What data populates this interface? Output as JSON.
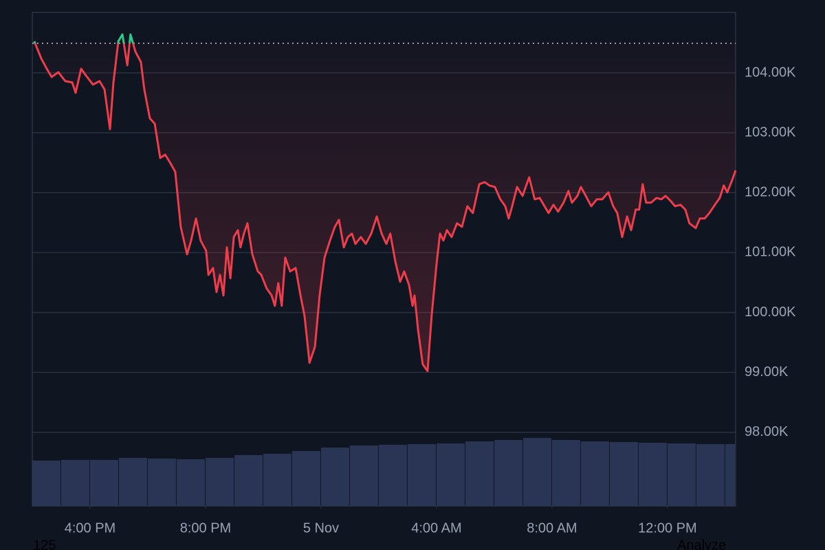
{
  "chart_data": {
    "type": "line",
    "x": [
      14.07,
      14.31,
      14.5,
      14.67,
      14.9,
      15.14,
      15.38,
      15.5,
      15.69,
      15.86,
      16.1,
      16.33,
      16.5,
      16.69,
      16.81,
      16.98,
      17.12,
      17.29,
      17.4,
      17.57,
      17.76,
      17.88,
      18.07,
      18.24,
      18.43,
      18.6,
      18.79,
      18.95,
      19.14,
      19.36,
      19.5,
      19.67,
      19.83,
      20.02,
      20.1,
      20.26,
      20.38,
      20.5,
      20.62,
      20.74,
      20.86,
      20.98,
      21.12,
      21.21,
      21.33,
      21.45,
      21.62,
      21.81,
      21.93,
      22.12,
      22.29,
      22.4,
      22.52,
      22.64,
      22.76,
      22.93,
      23.12,
      23.29,
      23.43,
      23.6,
      23.79,
      23.95,
      24.12,
      24.31,
      24.48,
      24.62,
      24.79,
      24.93,
      25.07,
      25.19,
      25.38,
      25.55,
      25.74,
      25.93,
      26.1,
      26.26,
      26.4,
      26.57,
      26.74,
      26.88,
      27.05,
      27.17,
      27.24,
      27.36,
      27.52,
      27.69,
      27.83,
      28,
      28.12,
      28.24,
      28.36,
      28.52,
      28.71,
      28.88,
      29.07,
      29.26,
      29.48,
      29.67,
      29.83,
      30.02,
      30.21,
      30.38,
      30.5,
      30.62,
      30.79,
      30.98,
      31.21,
      31.4,
      31.57,
      31.74,
      31.88,
      32.05,
      32.21,
      32.4,
      32.57,
      32.69,
      32.88,
      33,
      33.17,
      33.36,
      33.55,
      33.74,
      33.95,
      34.12,
      34.26,
      34.43,
      34.6,
      34.74,
      34.9,
      35.02,
      35.14,
      35.26,
      35.43,
      35.62,
      35.79,
      35.93,
      36.1,
      36.26,
      36.45,
      36.62,
      36.76,
      36.98,
      37.12,
      37.29,
      37.45,
      37.64,
      37.81,
      37.95,
      38.07,
      38.24,
      38.36
    ],
    "values": [
      104527,
      104240,
      104069,
      103931,
      104011,
      103862,
      103840,
      103667,
      104069,
      103954,
      103805,
      103862,
      103725,
      103060,
      103840,
      104527,
      104642,
      104126,
      104642,
      104355,
      104183,
      103725,
      103243,
      103151,
      102578,
      102635,
      102486,
      102349,
      101431,
      100972,
      101202,
      101569,
      101202,
      101030,
      100628,
      100743,
      100342,
      100628,
      100284,
      101087,
      100571,
      101259,
      101374,
      101087,
      101317,
      101489,
      100972,
      100686,
      100628,
      100399,
      100284,
      100112,
      100491,
      100112,
      100915,
      100686,
      100743,
      100284,
      99940,
      99161,
      99427,
      100284,
      100915,
      101202,
      101431,
      101546,
      101087,
      101259,
      101317,
      101145,
      101259,
      101145,
      101317,
      101603,
      101317,
      101145,
      101317,
      100858,
      100514,
      100686,
      100456,
      100112,
      100284,
      99711,
      99138,
      99023,
      99940,
      100800,
      101317,
      101202,
      101374,
      101259,
      101489,
      101431,
      101775,
      101661,
      102142,
      102177,
      102120,
      102096,
      101890,
      101775,
      101569,
      101775,
      102096,
      101947,
      102257,
      101890,
      101913,
      101775,
      101661,
      101798,
      101684,
      101833,
      102028,
      101833,
      101947,
      102096,
      101947,
      101775,
      101890,
      101890,
      102005,
      101775,
      101661,
      101259,
      101603,
      101374,
      101718,
      101718,
      102142,
      101833,
      101833,
      101913,
      101890,
      101947,
      101867,
      101775,
      101798,
      101718,
      101489,
      101409,
      101569,
      101569,
      101661,
      101798,
      101913,
      102120,
      102005,
      102211,
      102372
    ],
    "baseline": 104493,
    "colors": {
      "above": "#2ec98b",
      "below": "#ee3e4b",
      "volume": "#2a3556"
    },
    "volume": {
      "x": [
        14,
        15,
        16,
        17,
        18,
        19,
        20,
        21,
        22,
        23,
        24,
        25,
        26,
        27,
        28,
        29,
        30,
        31,
        32,
        33,
        34,
        35,
        36,
        37,
        38
      ],
      "values": [
        66,
        67,
        67,
        70,
        69,
        68,
        70,
        74,
        76,
        80,
        85,
        88,
        89,
        90,
        91,
        94,
        96,
        99,
        96,
        94,
        93,
        92,
        91,
        90,
        90
      ],
      "ylim": [
        0,
        100
      ]
    },
    "xlim": [
      14,
      38.36
    ],
    "xticks": [
      {
        "value": 16,
        "label": "4:00 PM"
      },
      {
        "value": 20,
        "label": "8:00 PM"
      },
      {
        "value": 24,
        "label": "5 Nov"
      },
      {
        "value": 28,
        "label": "4:00 AM"
      },
      {
        "value": 32,
        "label": "8:00 AM"
      },
      {
        "value": 36,
        "label": "12:00 PM"
      }
    ],
    "ylim": [
      96770,
      105010
    ],
    "yticks": [
      {
        "value": 98000,
        "label": "98.00K"
      },
      {
        "value": 99000,
        "label": "99.00K"
      },
      {
        "value": 100000,
        "label": "100.00K"
      },
      {
        "value": 101000,
        "label": "101.00K"
      },
      {
        "value": 102000,
        "label": "102.00K"
      },
      {
        "value": 103000,
        "label": "103.00K"
      },
      {
        "value": 104000,
        "label": "104.00K"
      }
    ],
    "grid": true,
    "footer_left": "125",
    "footer_right": "Analyze"
  }
}
